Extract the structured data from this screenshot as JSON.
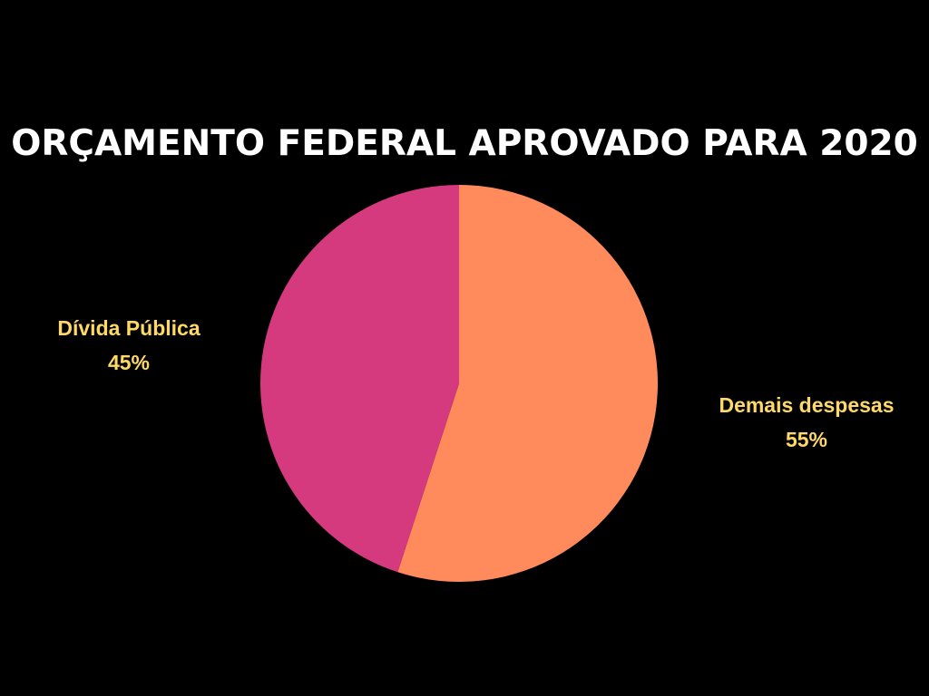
{
  "chart_data": {
    "type": "pie",
    "title": "ORÇAMENTO FEDERAL APROVADO PARA 2020",
    "slices": [
      {
        "label": "Demais despesas",
        "value": 55,
        "value_label": "55%",
        "color": "#ff8a5c"
      },
      {
        "label": "Dívida Pública",
        "value": 45,
        "value_label": "45%",
        "color": "#d63a7e"
      }
    ],
    "label_color": "#ffd966",
    "background": "#000000"
  }
}
